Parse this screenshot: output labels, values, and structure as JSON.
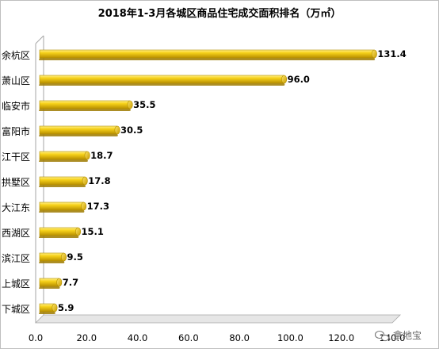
{
  "chart_data": {
    "type": "bar",
    "orientation": "horizontal",
    "title": "2018年1-3月各城区商品住宅成交面积排名（万㎡）",
    "categories": [
      "余杭区",
      "萧山区",
      "临安市",
      "富阳市",
      "江干区",
      "拱墅区",
      "大江东",
      "西湖区",
      "滨江区",
      "上城区",
      "下城区"
    ],
    "values": [
      131.4,
      96.0,
      35.5,
      30.5,
      18.7,
      17.8,
      17.3,
      15.1,
      9.5,
      7.7,
      5.9
    ],
    "value_labels": [
      "131.4",
      "96.0",
      "35.5",
      "30.5",
      "18.7",
      "17.8",
      "17.3",
      "15.1",
      "9.5",
      "7.7",
      "5.9"
    ],
    "xlim": [
      0,
      140
    ],
    "x_ticks": [
      "0.0",
      "20.0",
      "40.0",
      "60.0",
      "80.0",
      "100.0",
      "120.0",
      "140.0"
    ],
    "grid": false,
    "legend": "none",
    "bar_color": "#F2C200",
    "bar_edge_color": "#B38F00"
  },
  "watermark": {
    "icon": "wechat-icon",
    "text": "拿地宝"
  }
}
